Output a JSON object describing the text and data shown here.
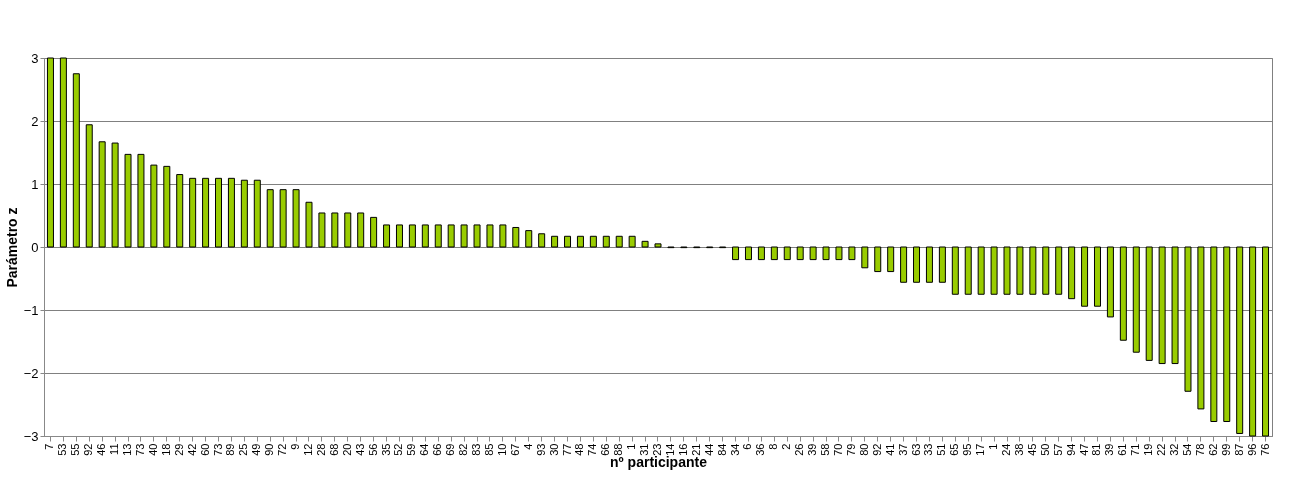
{
  "chart_data": {
    "type": "bar",
    "xlabel": "nº participante",
    "ylabel": "Parámetro z",
    "categories": [
      "7",
      "53",
      "55",
      "92",
      "46",
      "11",
      "13",
      "73",
      "40",
      "18",
      "29",
      "42",
      "60",
      "73",
      "89",
      "25",
      "49",
      "90",
      "72",
      "9",
      "12",
      "28",
      "68",
      "20",
      "43",
      "56",
      "35",
      "52",
      "59",
      "64",
      "66",
      "69",
      "82",
      "83",
      "85",
      "10",
      "67",
      "4",
      "93",
      "30",
      "77",
      "48",
      "74",
      "66",
      "88",
      "1",
      "31",
      "23",
      "14",
      "16",
      "21",
      "44",
      "84",
      "34",
      "6",
      "36",
      "8",
      "2",
      "26",
      "39",
      "58",
      "70",
      "79",
      "80",
      "92",
      "41",
      "37",
      "63",
      "33",
      "51",
      "65",
      "95",
      "17",
      "1",
      "24",
      "38",
      "45",
      "50",
      "57",
      "94",
      "47",
      "81",
      "39",
      "61",
      "71",
      "19",
      "22",
      "32",
      "54",
      "78",
      "62",
      "99",
      "87",
      "96",
      "76"
    ],
    "values": [
      3,
      3,
      2.75,
      1.94,
      1.67,
      1.65,
      1.47,
      1.47,
      1.3,
      1.28,
      1.15,
      1.09,
      1.09,
      1.09,
      1.09,
      1.06,
      1.06,
      0.91,
      0.91,
      0.91,
      0.71,
      0.54,
      0.54,
      0.54,
      0.54,
      0.47,
      0.35,
      0.35,
      0.35,
      0.35,
      0.35,
      0.35,
      0.35,
      0.35,
      0.35,
      0.35,
      0.31,
      0.26,
      0.21,
      0.17,
      0.17,
      0.17,
      0.17,
      0.17,
      0.17,
      0.17,
      0.09,
      0.05,
      -0.01,
      -0.01,
      -0.01,
      -0.01,
      -0.01,
      -0.2,
      -0.2,
      -0.2,
      -0.2,
      -0.2,
      -0.2,
      -0.2,
      -0.2,
      -0.2,
      -0.2,
      -0.33,
      -0.39,
      -0.39,
      -0.56,
      -0.56,
      -0.56,
      -0.56,
      -0.75,
      -0.75,
      -0.75,
      -0.75,
      -0.75,
      -0.75,
      -0.75,
      -0.75,
      -0.75,
      -0.82,
      -0.94,
      -0.94,
      -1.11,
      -1.48,
      -1.67,
      -1.8,
      -1.85,
      -1.85,
      -2.29,
      -2.57,
      -2.77,
      -2.77,
      -2.96,
      -3,
      -3
    ],
    "color": "#99cc00",
    "ylim": [
      -3,
      3
    ],
    "yticks": [
      -3,
      -2,
      -1,
      0,
      1,
      2,
      3
    ],
    "grid": "y"
  }
}
